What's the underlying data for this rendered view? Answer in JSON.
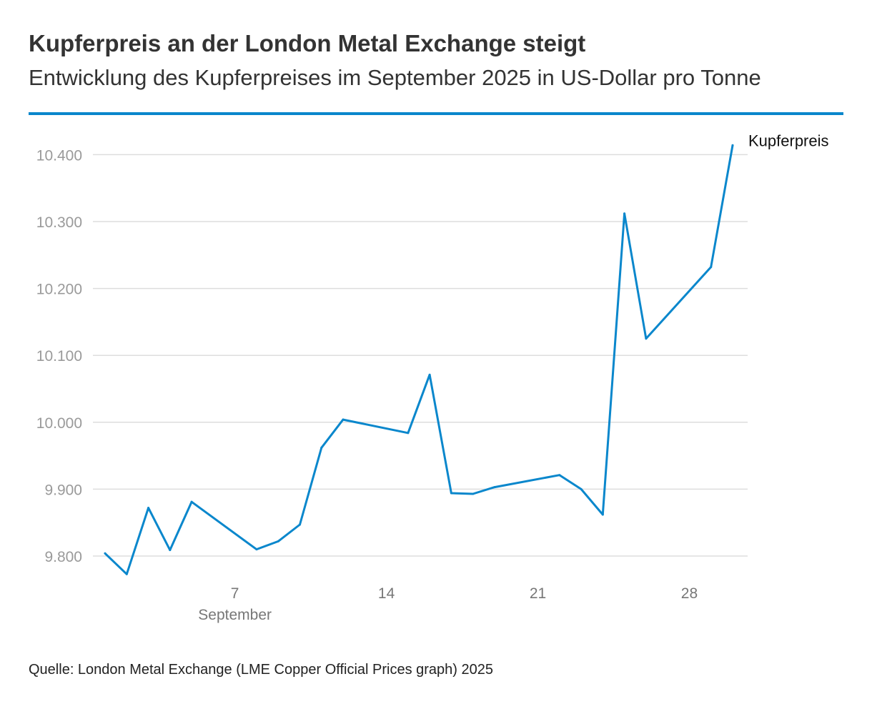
{
  "colors": {
    "accent": "#0a87cc",
    "grid": "#dddddd"
  },
  "chart_data": {
    "type": "line",
    "title": "Kupferpreis an der London Metal Exchange steigt",
    "subtitle": "Entwicklung des Kupferpreises im September 2025 in US-Dollar pro Tonne",
    "source": "Quelle: London Metal Exchange (LME Copper Official Prices graph) 2025",
    "xlabel": "September",
    "ylabel": "",
    "xlim": [
      1,
      30
    ],
    "ylim": [
      9750,
      10420
    ],
    "yticks": [
      9800,
      9900,
      10000,
      10100,
      10200,
      10300,
      10400
    ],
    "ytick_labels": [
      "9.800",
      "9.900",
      "10.000",
      "10.100",
      "10.200",
      "10.300",
      "10.400"
    ],
    "xticks": [
      7,
      14,
      21,
      28
    ],
    "xtick_labels": [
      "7",
      "14",
      "21",
      "28"
    ],
    "grid": true,
    "series": [
      {
        "name": "Kupferpreis",
        "x": [
          1,
          2,
          3,
          4,
          5,
          8,
          9,
          10,
          11,
          12,
          15,
          16,
          17,
          18,
          19,
          22,
          23,
          24,
          25,
          26,
          29,
          30
        ],
        "values": [
          9804,
          9773,
          9872,
          9809,
          9881,
          9810,
          9822,
          9847,
          9962,
          10004,
          9984,
          10071,
          9894,
          9893,
          9903,
          9921,
          9900,
          9862,
          10312,
          10125,
          10232,
          10414
        ]
      }
    ]
  }
}
